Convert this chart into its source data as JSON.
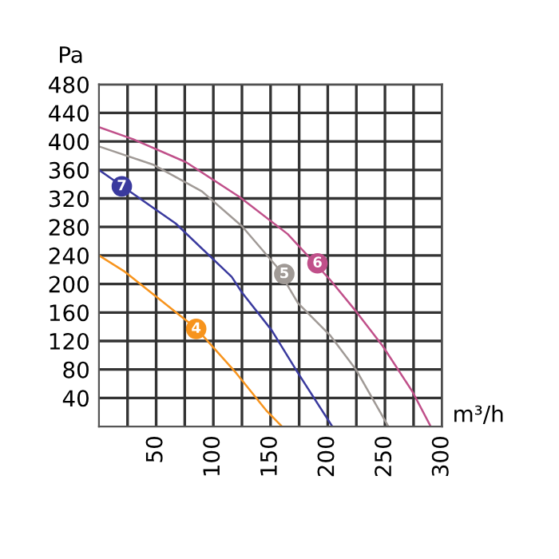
{
  "chart_data": {
    "type": "line",
    "xlabel": "m³/h",
    "ylabel": "Pa",
    "xlim": [
      0,
      300
    ],
    "ylim": [
      0,
      480
    ],
    "xticks": [
      {
        "value": 25,
        "label": null
      },
      50,
      {
        "value": 75,
        "label": null
      },
      100,
      {
        "value": 125,
        "label": null
      },
      150,
      {
        "value": 175,
        "label": null
      },
      200,
      {
        "value": 225,
        "label": null
      },
      250,
      {
        "value": 275,
        "label": null
      },
      300
    ],
    "yticks": [
      40,
      80,
      120,
      160,
      200,
      240,
      280,
      320,
      360,
      400,
      440,
      480
    ],
    "grid": true,
    "marker": "none",
    "line_style": "solid",
    "series": [
      {
        "color": "#f7941d",
        "x": [
          0,
          22.8,
          85.5,
          120,
          146,
          160
        ],
        "values": [
          240,
          217,
          137,
          75,
          23,
          0
        ]
      },
      {
        "color": "#a09a96",
        "x": [
          0,
          48,
          90,
          125,
          155,
          174,
          202,
          225,
          253
        ],
        "values": [
          393,
          367,
          330,
          281,
          225,
          173,
          128,
          79,
          0
        ]
      },
      {
        "color": "#c0508a",
        "x": [
          0,
          30,
          76,
          123,
          165,
          202,
          225,
          248,
          274,
          290
        ],
        "values": [
          420,
          403,
          371,
          322,
          270,
          206,
          161,
          113,
          49,
          0
        ]
      },
      {
        "color": "#3a3a9e",
        "x": [
          0,
          20.5,
          67,
          116,
          125,
          151,
          174,
          204
        ],
        "values": [
          360,
          337,
          285,
          210,
          188,
          135,
          75,
          0
        ]
      }
    ],
    "annotations": [
      {
        "text": "4",
        "x": 85,
        "y": 137
      },
      {
        "text": "5",
        "x": 162,
        "y": 214
      },
      {
        "text": "6",
        "x": 191,
        "y": 229
      },
      {
        "text": "7",
        "x": 20,
        "y": 337
      }
    ]
  }
}
